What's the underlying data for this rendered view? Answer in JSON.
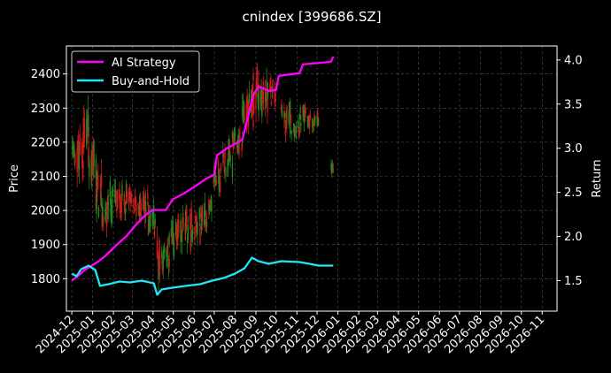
{
  "chart_data": {
    "type": "line",
    "title": "cnindex [399686.SZ]",
    "xlabel": "",
    "ylabel": "Price",
    "y2label": "Return",
    "grid": true,
    "legend_placement": "top-left",
    "background": "#000000",
    "x_tick_labels": [
      "2024-12",
      "2025-01",
      "2025-02",
      "2025-03",
      "2025-04",
      "2025-05",
      "2025-06",
      "2025-07",
      "2025-08",
      "2025-09",
      "2025-10",
      "2025-11",
      "2025-12",
      "2026-01",
      "2026-02",
      "2026-03",
      "2026-04",
      "2026-05",
      "2026-06",
      "2026-07",
      "2026-08",
      "2026-09",
      "2026-10",
      "2026-11"
    ],
    "xlim": [
      "2024-11-23",
      "2026-11-23"
    ],
    "ylim": [
      1705,
      2482
    ],
    "y_ticks": [
      1800,
      1900,
      2000,
      2100,
      2200,
      2300,
      2400
    ],
    "y2lim": [
      1.154,
      4.159
    ],
    "y2_ticks": [
      1.5,
      2.0,
      2.5,
      3.0,
      3.5,
      4.0
    ],
    "candles": {
      "up_color": "#1f8a1f",
      "down_color": "#d11a1a",
      "segments": [
        {
          "from": "2024-12-02",
          "to": "2024-12-08",
          "low": 2120,
          "high": 2230
        },
        {
          "from": "2024-12-08",
          "to": "2024-12-18",
          "low": 2060,
          "high": 2260
        },
        {
          "from": "2024-12-18",
          "to": "2024-12-26",
          "low": 2120,
          "high": 2340
        },
        {
          "from": "2024-12-26",
          "to": "2025-01-06",
          "low": 2050,
          "high": 2250
        },
        {
          "from": "2025-01-06",
          "to": "2025-01-14",
          "low": 1930,
          "high": 2150
        },
        {
          "from": "2025-01-14",
          "to": "2025-01-24",
          "low": 1920,
          "high": 2060
        },
        {
          "from": "2025-01-24",
          "to": "2025-02-10",
          "low": 1950,
          "high": 2100
        },
        {
          "from": "2025-02-10",
          "to": "2025-02-26",
          "low": 1970,
          "high": 2090
        },
        {
          "from": "2025-02-26",
          "to": "2025-03-12",
          "low": 1960,
          "high": 2070
        },
        {
          "from": "2025-03-12",
          "to": "2025-03-25",
          "low": 1940,
          "high": 2080
        },
        {
          "from": "2025-03-25",
          "to": "2025-04-05",
          "low": 1910,
          "high": 2040
        },
        {
          "from": "2025-04-07",
          "to": "2025-04-12",
          "low": 1750,
          "high": 1960
        },
        {
          "from": "2025-04-12",
          "to": "2025-04-25",
          "low": 1800,
          "high": 1930
        },
        {
          "from": "2025-04-25",
          "to": "2025-05-12",
          "low": 1850,
          "high": 1990
        },
        {
          "from": "2025-05-12",
          "to": "2025-05-28",
          "low": 1870,
          "high": 2020
        },
        {
          "from": "2025-05-28",
          "to": "2025-06-12",
          "low": 1890,
          "high": 2030
        },
        {
          "from": "2025-06-12",
          "to": "2025-06-28",
          "low": 1920,
          "high": 2060
        },
        {
          "from": "2025-06-28",
          "to": "2025-07-12",
          "low": 2040,
          "high": 2160
        },
        {
          "from": "2025-07-12",
          "to": "2025-07-28",
          "low": 2070,
          "high": 2220
        },
        {
          "from": "2025-07-28",
          "to": "2025-08-12",
          "low": 2150,
          "high": 2250
        },
        {
          "from": "2025-08-12",
          "to": "2025-08-28",
          "low": 2200,
          "high": 2380
        },
        {
          "from": "2025-08-28",
          "to": "2025-09-05",
          "low": 2260,
          "high": 2450
        },
        {
          "from": "2025-09-05",
          "to": "2025-09-18",
          "low": 2250,
          "high": 2420
        },
        {
          "from": "2025-09-18",
          "to": "2025-09-30",
          "low": 2280,
          "high": 2400
        },
        {
          "from": "2025-10-09",
          "to": "2025-10-22",
          "low": 2200,
          "high": 2340
        },
        {
          "from": "2025-10-22",
          "to": "2025-11-05",
          "low": 2200,
          "high": 2300
        },
        {
          "from": "2025-11-05",
          "to": "2025-11-20",
          "low": 2220,
          "high": 2320
        },
        {
          "from": "2025-11-20",
          "to": "2025-12-03",
          "low": 2220,
          "high": 2300
        },
        {
          "from": "2025-12-22",
          "to": "2025-12-25",
          "low": 2085,
          "high": 2155
        }
      ]
    },
    "series": [
      {
        "name": "AI Strategy",
        "axis": "right",
        "color": "#ff00ff",
        "points": [
          [
            "2024-12-01",
            1.5
          ],
          [
            "2024-12-10",
            1.55
          ],
          [
            "2024-12-20",
            1.62
          ],
          [
            "2025-01-02",
            1.68
          ],
          [
            "2025-01-10",
            1.72
          ],
          [
            "2025-01-20",
            1.78
          ],
          [
            "2025-02-05",
            1.9
          ],
          [
            "2025-02-20",
            2.0
          ],
          [
            "2025-03-05",
            2.12
          ],
          [
            "2025-03-20",
            2.24
          ],
          [
            "2025-03-31",
            2.3
          ],
          [
            "2025-04-20",
            2.3
          ],
          [
            "2025-04-30",
            2.42
          ],
          [
            "2025-05-15",
            2.48
          ],
          [
            "2025-06-01",
            2.56
          ],
          [
            "2025-06-20",
            2.66
          ],
          [
            "2025-07-01",
            2.7
          ],
          [
            "2025-07-05",
            2.92
          ],
          [
            "2025-07-20",
            3.0
          ],
          [
            "2025-08-01",
            3.05
          ],
          [
            "2025-08-12",
            3.1
          ],
          [
            "2025-08-20",
            3.35
          ],
          [
            "2025-08-28",
            3.6
          ],
          [
            "2025-09-05",
            3.7
          ],
          [
            "2025-09-20",
            3.65
          ],
          [
            "2025-10-01",
            3.66
          ],
          [
            "2025-10-05",
            3.82
          ],
          [
            "2025-11-05",
            3.85
          ],
          [
            "2025-11-10",
            3.95
          ],
          [
            "2025-12-22",
            3.98
          ],
          [
            "2025-12-25",
            4.04
          ]
        ]
      },
      {
        "name": "Buy-and-Hold",
        "axis": "right",
        "color": "#22e5f5",
        "points": [
          [
            "2024-12-01",
            1.58
          ],
          [
            "2024-12-08",
            1.55
          ],
          [
            "2024-12-15",
            1.63
          ],
          [
            "2024-12-26",
            1.67
          ],
          [
            "2025-01-05",
            1.62
          ],
          [
            "2025-01-12",
            1.44
          ],
          [
            "2025-01-25",
            1.46
          ],
          [
            "2025-02-10",
            1.49
          ],
          [
            "2025-02-26",
            1.48
          ],
          [
            "2025-03-15",
            1.5
          ],
          [
            "2025-04-02",
            1.47
          ],
          [
            "2025-04-07",
            1.34
          ],
          [
            "2025-04-14",
            1.4
          ],
          [
            "2025-05-01",
            1.42
          ],
          [
            "2025-05-20",
            1.44
          ],
          [
            "2025-06-10",
            1.46
          ],
          [
            "2025-06-28",
            1.5
          ],
          [
            "2025-07-15",
            1.53
          ],
          [
            "2025-08-01",
            1.58
          ],
          [
            "2025-08-15",
            1.64
          ],
          [
            "2025-08-26",
            1.76
          ],
          [
            "2025-09-05",
            1.72
          ],
          [
            "2025-09-20",
            1.69
          ],
          [
            "2025-10-09",
            1.72
          ],
          [
            "2025-11-05",
            1.71
          ],
          [
            "2025-11-20",
            1.69
          ],
          [
            "2025-12-03",
            1.67
          ],
          [
            "2025-12-25",
            1.67
          ]
        ]
      }
    ]
  }
}
